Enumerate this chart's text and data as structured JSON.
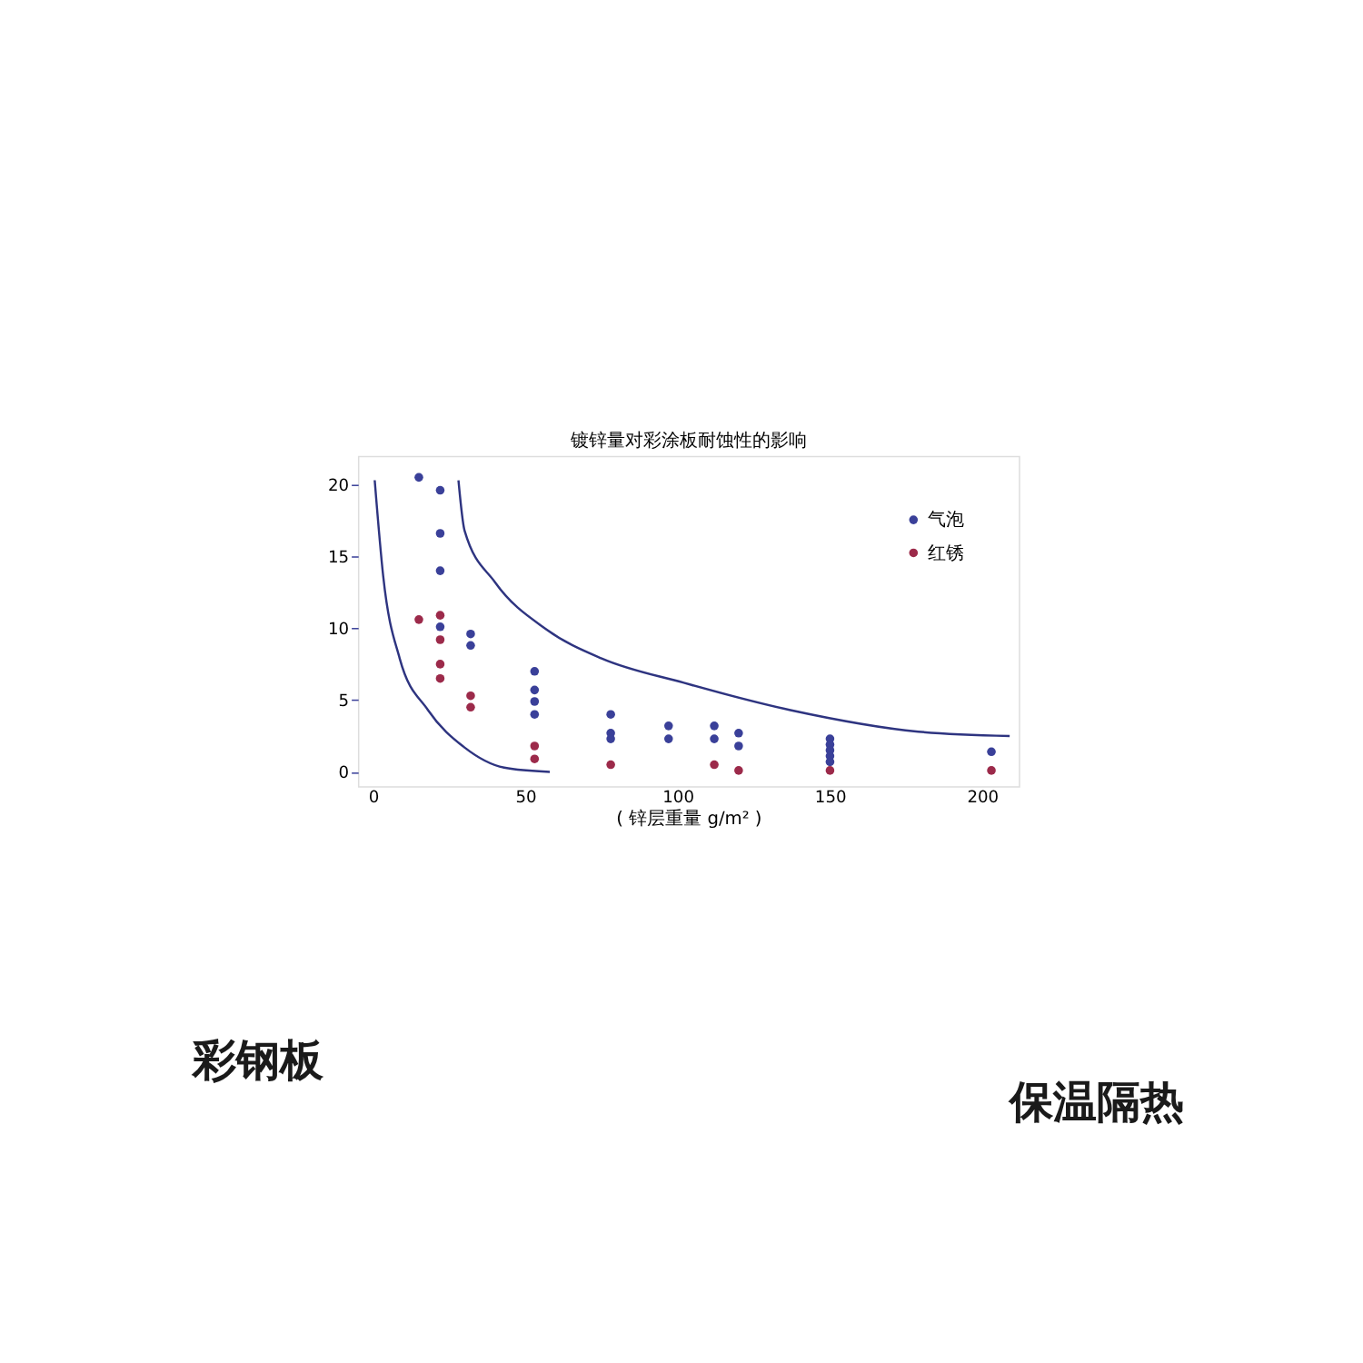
{
  "chart_data": {
    "type": "scatter",
    "title": "镀锌量对彩涂板耐蚀性的影响",
    "xlabel": "( 锌层重量 g/m² )",
    "xlim": [
      -5,
      212
    ],
    "ylim": [
      -1,
      22
    ],
    "xticks": [
      0,
      50,
      100,
      150,
      200
    ],
    "yticks": [
      0,
      5,
      10,
      15,
      20
    ],
    "grid": false,
    "legend": "top right",
    "series": [
      {
        "name": "气泡",
        "color": "#3a4099",
        "marker": "circle",
        "x": [
          15,
          22,
          22,
          22,
          22,
          32,
          32,
          53,
          53,
          53,
          53,
          78,
          78,
          78,
          97,
          97,
          112,
          112,
          120,
          120,
          150,
          150,
          150,
          150,
          150,
          203
        ],
        "values": [
          20.5,
          19.6,
          16.6,
          14.0,
          10.1,
          9.6,
          8.8,
          7.0,
          5.7,
          4.9,
          4.0,
          4.0,
          2.7,
          2.3,
          3.2,
          2.3,
          3.2,
          2.3,
          2.7,
          1.8,
          2.3,
          1.9,
          1.5,
          1.1,
          0.7,
          1.4
        ]
      },
      {
        "name": "红锈",
        "color": "#9c2a4a",
        "marker": "circle",
        "x": [
          15,
          22,
          22,
          22,
          22,
          32,
          32,
          53,
          53,
          78,
          112,
          120,
          150,
          203
        ],
        "values": [
          10.6,
          10.9,
          9.2,
          7.5,
          6.5,
          5.3,
          4.5,
          1.8,
          0.9,
          0.5,
          0.5,
          0.1,
          0.1,
          0.1
        ]
      },
      {
        "type": "line",
        "color": "#2e3480",
        "x": [
          0.5,
          3.3,
          8.7,
          18,
          30,
          43,
          58
        ],
        "values": [
          20.3,
          13.6,
          7.9,
          4.3,
          1.7,
          0.3,
          0
        ]
      },
      {
        "type": "line",
        "color": "#2e3480",
        "x": [
          28,
          30,
          40,
          57,
          75,
          102,
          137,
          179,
          209
        ],
        "values": [
          20.3,
          16.8,
          13.2,
          9.9,
          7.9,
          6.2,
          4.3,
          2.8,
          2.5
        ]
      }
    ],
    "annotations": [
      "彩钢板",
      "保温隔热"
    ]
  }
}
